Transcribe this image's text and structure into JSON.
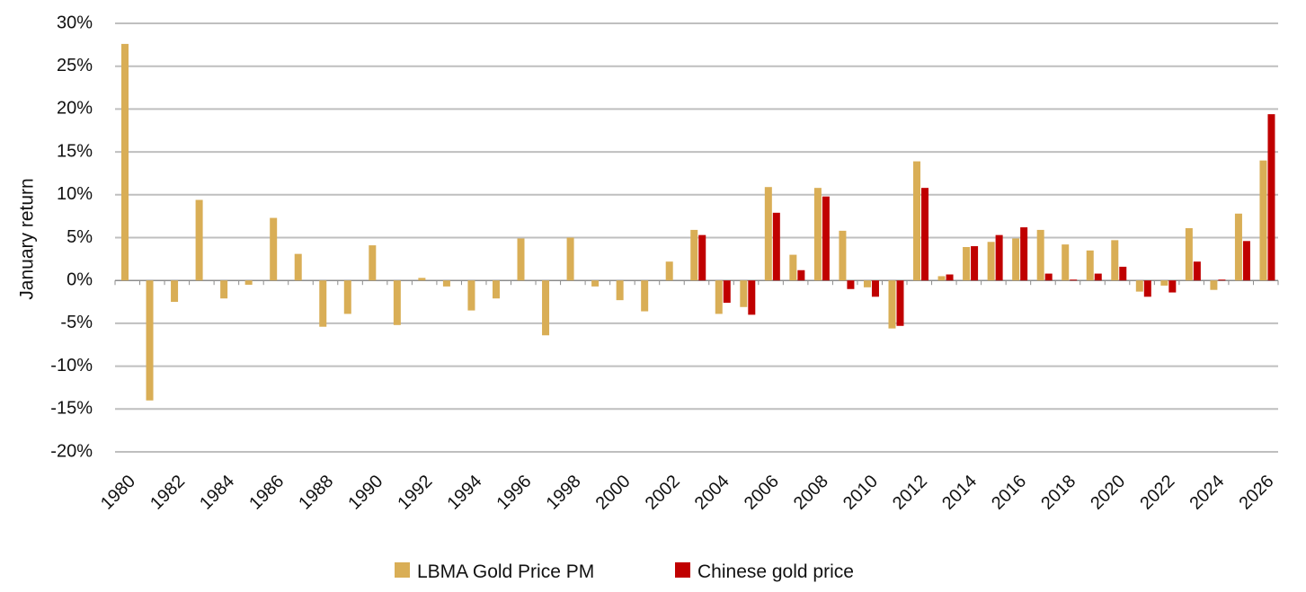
{
  "chart_data": {
    "type": "bar",
    "title": "",
    "xlabel": "",
    "ylabel": "January return",
    "ylim": [
      -20,
      30
    ],
    "ytick_step": 5,
    "ytick_suffix": "%",
    "grid": true,
    "legend_position": "bottom-center",
    "categories": [
      1980,
      1981,
      1982,
      1983,
      1984,
      1985,
      1986,
      1987,
      1988,
      1989,
      1990,
      1991,
      1992,
      1993,
      1994,
      1995,
      1996,
      1997,
      1998,
      1999,
      2000,
      2001,
      2002,
      2003,
      2004,
      2005,
      2006,
      2007,
      2008,
      2009,
      2010,
      2011,
      2012,
      2013,
      2014,
      2015,
      2016,
      2017,
      2018,
      2019,
      2020,
      2021,
      2022,
      2023,
      2024,
      2025,
      2026
    ],
    "x_tick_labels": [
      1980,
      1982,
      1984,
      1986,
      1988,
      1990,
      1992,
      1994,
      1996,
      1998,
      2000,
      2002,
      2004,
      2006,
      2008,
      2010,
      2012,
      2014,
      2016,
      2018,
      2020,
      2022,
      2024,
      2026
    ],
    "series": [
      {
        "name": "LBMA Gold Price PM",
        "color": "#D9AE56",
        "values": [
          27.6,
          -14.0,
          -2.5,
          9.4,
          -2.1,
          -0.5,
          7.3,
          3.1,
          -5.4,
          -3.9,
          4.1,
          -5.2,
          0.3,
          -0.7,
          -3.5,
          -2.1,
          4.9,
          -6.4,
          5.0,
          -0.7,
          -2.3,
          -3.6,
          2.2,
          5.9,
          -3.9,
          -3.1,
          10.9,
          3.0,
          10.8,
          5.8,
          -0.8,
          -5.6,
          13.9,
          0.5,
          3.9,
          4.5,
          4.9,
          5.9,
          4.2,
          3.5,
          4.7,
          -1.3,
          -0.6,
          6.1,
          -1.1,
          7.8,
          14.0
        ]
      },
      {
        "name": "Chinese gold price",
        "color": "#C00000",
        "values": [
          null,
          null,
          null,
          null,
          null,
          null,
          null,
          null,
          null,
          null,
          null,
          null,
          null,
          null,
          null,
          null,
          null,
          null,
          null,
          null,
          null,
          null,
          null,
          5.3,
          -2.6,
          -4.0,
          7.9,
          1.2,
          9.8,
          -1.0,
          -1.9,
          -5.3,
          10.8,
          0.7,
          4.0,
          5.3,
          6.2,
          0.8,
          0.1,
          0.8,
          1.6,
          -1.9,
          -1.4,
          2.2,
          0.1,
          4.6,
          19.4
        ]
      }
    ]
  }
}
